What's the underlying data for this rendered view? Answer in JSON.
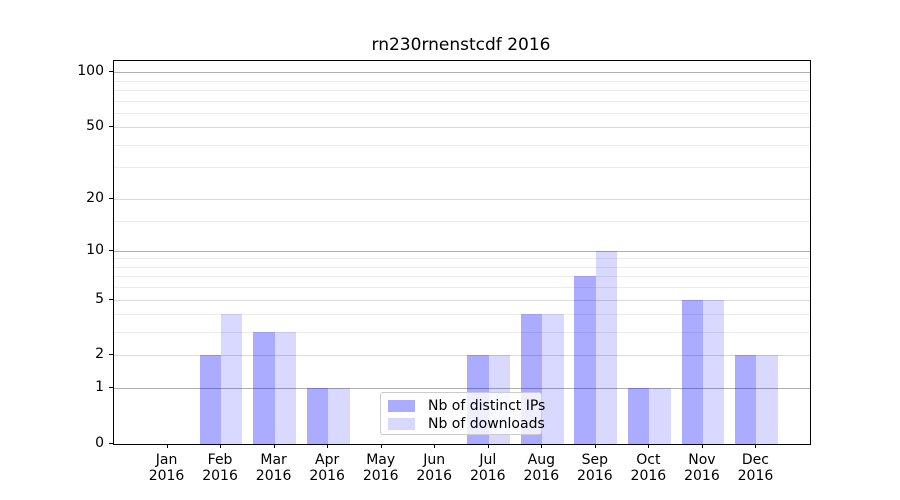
{
  "chart_data": {
    "type": "bar",
    "title": "rn230rnenstcdf 2016",
    "categories": [
      {
        "month": "Jan",
        "year": "2016"
      },
      {
        "month": "Feb",
        "year": "2016"
      },
      {
        "month": "Mar",
        "year": "2016"
      },
      {
        "month": "Apr",
        "year": "2016"
      },
      {
        "month": "May",
        "year": "2016"
      },
      {
        "month": "Jun",
        "year": "2016"
      },
      {
        "month": "Jul",
        "year": "2016"
      },
      {
        "month": "Aug",
        "year": "2016"
      },
      {
        "month": "Sep",
        "year": "2016"
      },
      {
        "month": "Oct",
        "year": "2016"
      },
      {
        "month": "Nov",
        "year": "2016"
      },
      {
        "month": "Dec",
        "year": "2016"
      }
    ],
    "series": [
      {
        "name": "Nb of distinct IPs",
        "color": "#0000FF54",
        "values": [
          0,
          2,
          3,
          1,
          0,
          0,
          2,
          4,
          7,
          1,
          5,
          2
        ]
      },
      {
        "name": "Nb of downloads",
        "color": "#0000FF26",
        "values": [
          0,
          4,
          3,
          1,
          0,
          0,
          2,
          4,
          10,
          1,
          5,
          2
        ]
      }
    ],
    "yscale": "log1p",
    "ylim": [
      0,
      115
    ],
    "y_major_ticks": [
      0,
      1,
      2,
      5,
      10,
      20,
      50,
      100
    ],
    "y_minor_ticks": [
      3,
      4,
      6,
      7,
      8,
      9,
      15,
      30,
      40,
      60,
      70,
      80,
      90
    ],
    "grid": true,
    "legend_position": "lower center"
  },
  "colors": {
    "grid_major_pow10": "#b0b0b0",
    "grid_major": "#d9d9d9",
    "grid_minor": "#ececec",
    "spine": "#000000",
    "text": "#000000",
    "legend_border": "#cccccc"
  }
}
